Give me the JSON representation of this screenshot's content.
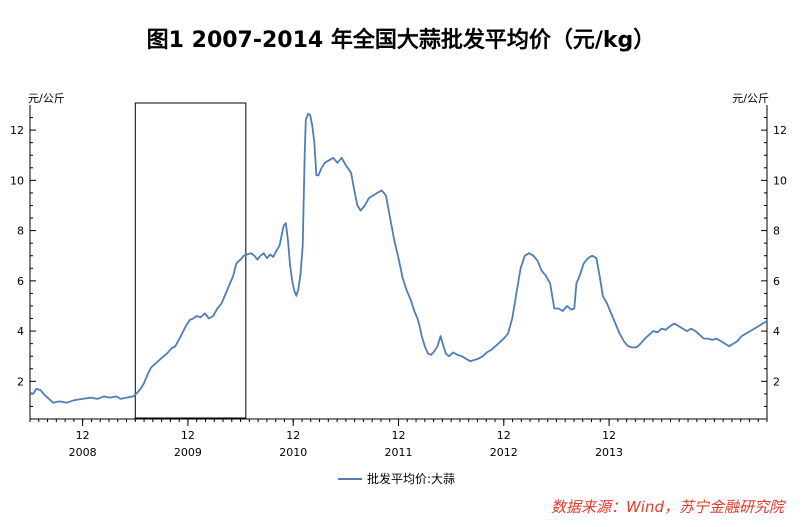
{
  "title": "图1 2007-2014 年全国大蒜批发平均价（元/kg）",
  "source": "数据来源：Wind，苏宁金融研究院",
  "chart_data": {
    "type": "line",
    "title": "图1 2007-2014 年全国大蒜批发平均价（元/kg）",
    "ylabel_left": "元/公斤",
    "ylabel_right": "元/公斤",
    "ylim": [
      0.5,
      13
    ],
    "yticks": [
      2,
      4,
      6,
      8,
      10,
      12
    ],
    "xlim": [
      2007.5,
      2014.5
    ],
    "x_major_labels": [
      {
        "month": "12",
        "year": "2008",
        "x": 2008.0
      },
      {
        "month": "12",
        "year": "2009",
        "x": 2009.0
      },
      {
        "month": "12",
        "year": "2010",
        "x": 2010.0
      },
      {
        "month": "12",
        "year": "2011",
        "x": 2011.0
      },
      {
        "month": "12",
        "year": "2012",
        "x": 2012.0
      },
      {
        "month": "12",
        "year": "2013",
        "x": 2013.0
      }
    ],
    "grid": false,
    "legend_position": "bottom",
    "highlight_box": {
      "x0": 2008.5,
      "x1": 2009.55
    },
    "series": [
      {
        "name": "批发平均价:大蒜",
        "color": "#4f7eb7",
        "points": [
          [
            2007.5,
            1.55
          ],
          [
            2007.53,
            1.5
          ],
          [
            2007.56,
            1.7
          ],
          [
            2007.6,
            1.65
          ],
          [
            2007.64,
            1.45
          ],
          [
            2007.68,
            1.3
          ],
          [
            2007.72,
            1.15
          ],
          [
            2007.78,
            1.2
          ],
          [
            2007.85,
            1.15
          ],
          [
            2007.92,
            1.25
          ],
          [
            2008.0,
            1.3
          ],
          [
            2008.08,
            1.35
          ],
          [
            2008.14,
            1.3
          ],
          [
            2008.2,
            1.4
          ],
          [
            2008.26,
            1.35
          ],
          [
            2008.32,
            1.4
          ],
          [
            2008.36,
            1.3
          ],
          [
            2008.42,
            1.35
          ],
          [
            2008.48,
            1.4
          ],
          [
            2008.52,
            1.55
          ],
          [
            2008.55,
            1.7
          ],
          [
            2008.58,
            1.9
          ],
          [
            2008.62,
            2.3
          ],
          [
            2008.65,
            2.55
          ],
          [
            2008.69,
            2.7
          ],
          [
            2008.73,
            2.85
          ],
          [
            2008.77,
            3.0
          ],
          [
            2008.8,
            3.1
          ],
          [
            2008.84,
            3.3
          ],
          [
            2008.88,
            3.4
          ],
          [
            2008.92,
            3.7
          ],
          [
            2008.95,
            3.95
          ],
          [
            2008.98,
            4.2
          ],
          [
            2009.02,
            4.45
          ],
          [
            2009.05,
            4.5
          ],
          [
            2009.08,
            4.6
          ],
          [
            2009.12,
            4.55
          ],
          [
            2009.16,
            4.7
          ],
          [
            2009.2,
            4.5
          ],
          [
            2009.24,
            4.6
          ],
          [
            2009.28,
            4.9
          ],
          [
            2009.32,
            5.1
          ],
          [
            2009.36,
            5.5
          ],
          [
            2009.4,
            5.9
          ],
          [
            2009.43,
            6.2
          ],
          [
            2009.46,
            6.7
          ],
          [
            2009.5,
            6.85
          ],
          [
            2009.53,
            7.0
          ],
          [
            2009.56,
            7.05
          ],
          [
            2009.6,
            7.1
          ],
          [
            2009.63,
            7.0
          ],
          [
            2009.66,
            6.85
          ],
          [
            2009.69,
            7.0
          ],
          [
            2009.72,
            7.1
          ],
          [
            2009.75,
            6.9
          ],
          [
            2009.78,
            7.05
          ],
          [
            2009.81,
            6.95
          ],
          [
            2009.84,
            7.2
          ],
          [
            2009.87,
            7.4
          ],
          [
            2009.89,
            7.8
          ],
          [
            2009.91,
            8.2
          ],
          [
            2009.93,
            8.3
          ],
          [
            2009.95,
            7.6
          ],
          [
            2009.97,
            6.6
          ],
          [
            2009.99,
            6.0
          ],
          [
            2010.01,
            5.6
          ],
          [
            2010.03,
            5.4
          ],
          [
            2010.05,
            5.7
          ],
          [
            2010.07,
            6.3
          ],
          [
            2010.09,
            7.4
          ],
          [
            2010.1,
            9.2
          ],
          [
            2010.11,
            11.2
          ],
          [
            2010.12,
            12.4
          ],
          [
            2010.14,
            12.65
          ],
          [
            2010.16,
            12.6
          ],
          [
            2010.18,
            12.2
          ],
          [
            2010.2,
            11.5
          ],
          [
            2010.22,
            10.2
          ],
          [
            2010.24,
            10.2
          ],
          [
            2010.27,
            10.5
          ],
          [
            2010.3,
            10.7
          ],
          [
            2010.34,
            10.8
          ],
          [
            2010.38,
            10.9
          ],
          [
            2010.42,
            10.7
          ],
          [
            2010.46,
            10.9
          ],
          [
            2010.5,
            10.6
          ],
          [
            2010.55,
            10.3
          ],
          [
            2010.58,
            9.6
          ],
          [
            2010.61,
            9.0
          ],
          [
            2010.64,
            8.8
          ],
          [
            2010.68,
            9.0
          ],
          [
            2010.72,
            9.3
          ],
          [
            2010.76,
            9.4
          ],
          [
            2010.8,
            9.5
          ],
          [
            2010.84,
            9.6
          ],
          [
            2010.88,
            9.4
          ],
          [
            2010.92,
            8.5
          ],
          [
            2010.96,
            7.6
          ],
          [
            2011.0,
            6.9
          ],
          [
            2011.04,
            6.1
          ],
          [
            2011.08,
            5.6
          ],
          [
            2011.12,
            5.2
          ],
          [
            2011.15,
            4.8
          ],
          [
            2011.18,
            4.5
          ],
          [
            2011.2,
            4.2
          ],
          [
            2011.22,
            3.8
          ],
          [
            2011.25,
            3.4
          ],
          [
            2011.28,
            3.1
          ],
          [
            2011.31,
            3.05
          ],
          [
            2011.34,
            3.2
          ],
          [
            2011.37,
            3.4
          ],
          [
            2011.4,
            3.8
          ],
          [
            2011.42,
            3.5
          ],
          [
            2011.45,
            3.1
          ],
          [
            2011.48,
            3.0
          ],
          [
            2011.52,
            3.15
          ],
          [
            2011.56,
            3.05
          ],
          [
            2011.6,
            3.0
          ],
          [
            2011.64,
            2.9
          ],
          [
            2011.68,
            2.8
          ],
          [
            2011.72,
            2.85
          ],
          [
            2011.76,
            2.9
          ],
          [
            2011.8,
            3.0
          ],
          [
            2011.84,
            3.15
          ],
          [
            2011.88,
            3.25
          ],
          [
            2011.92,
            3.4
          ],
          [
            2011.96,
            3.55
          ],
          [
            2012.0,
            3.7
          ],
          [
            2012.04,
            3.9
          ],
          [
            2012.08,
            4.5
          ],
          [
            2012.12,
            5.5
          ],
          [
            2012.16,
            6.5
          ],
          [
            2012.2,
            7.0
          ],
          [
            2012.24,
            7.1
          ],
          [
            2012.28,
            7.0
          ],
          [
            2012.32,
            6.8
          ],
          [
            2012.36,
            6.4
          ],
          [
            2012.4,
            6.2
          ],
          [
            2012.44,
            5.9
          ],
          [
            2012.48,
            4.9
          ],
          [
            2012.52,
            4.9
          ],
          [
            2012.56,
            4.8
          ],
          [
            2012.6,
            5.0
          ],
          [
            2012.64,
            4.85
          ],
          [
            2012.67,
            4.9
          ],
          [
            2012.69,
            5.9
          ],
          [
            2012.72,
            6.2
          ],
          [
            2012.76,
            6.7
          ],
          [
            2012.8,
            6.9
          ],
          [
            2012.84,
            7.0
          ],
          [
            2012.88,
            6.9
          ],
          [
            2012.91,
            6.2
          ],
          [
            2012.94,
            5.4
          ],
          [
            2012.98,
            5.1
          ],
          [
            2013.02,
            4.7
          ],
          [
            2013.06,
            4.3
          ],
          [
            2013.1,
            3.9
          ],
          [
            2013.14,
            3.6
          ],
          [
            2013.18,
            3.4
          ],
          [
            2013.22,
            3.35
          ],
          [
            2013.26,
            3.35
          ],
          [
            2013.3,
            3.5
          ],
          [
            2013.34,
            3.7
          ],
          [
            2013.38,
            3.85
          ],
          [
            2013.42,
            4.0
          ],
          [
            2013.46,
            3.95
          ],
          [
            2013.5,
            4.1
          ],
          [
            2013.54,
            4.05
          ],
          [
            2013.58,
            4.2
          ],
          [
            2013.62,
            4.3
          ],
          [
            2013.66,
            4.2
          ],
          [
            2013.7,
            4.1
          ],
          [
            2013.74,
            4.0
          ],
          [
            2013.78,
            4.1
          ],
          [
            2013.82,
            4.0
          ],
          [
            2013.86,
            3.85
          ],
          [
            2013.9,
            3.7
          ],
          [
            2013.94,
            3.7
          ],
          [
            2013.98,
            3.65
          ],
          [
            2014.02,
            3.7
          ],
          [
            2014.06,
            3.6
          ],
          [
            2014.1,
            3.5
          ],
          [
            2014.14,
            3.4
          ],
          [
            2014.18,
            3.5
          ],
          [
            2014.22,
            3.6
          ],
          [
            2014.26,
            3.8
          ],
          [
            2014.3,
            3.9
          ],
          [
            2014.34,
            4.0
          ],
          [
            2014.38,
            4.1
          ],
          [
            2014.42,
            4.2
          ],
          [
            2014.46,
            4.3
          ],
          [
            2014.5,
            4.4
          ]
        ]
      }
    ]
  }
}
